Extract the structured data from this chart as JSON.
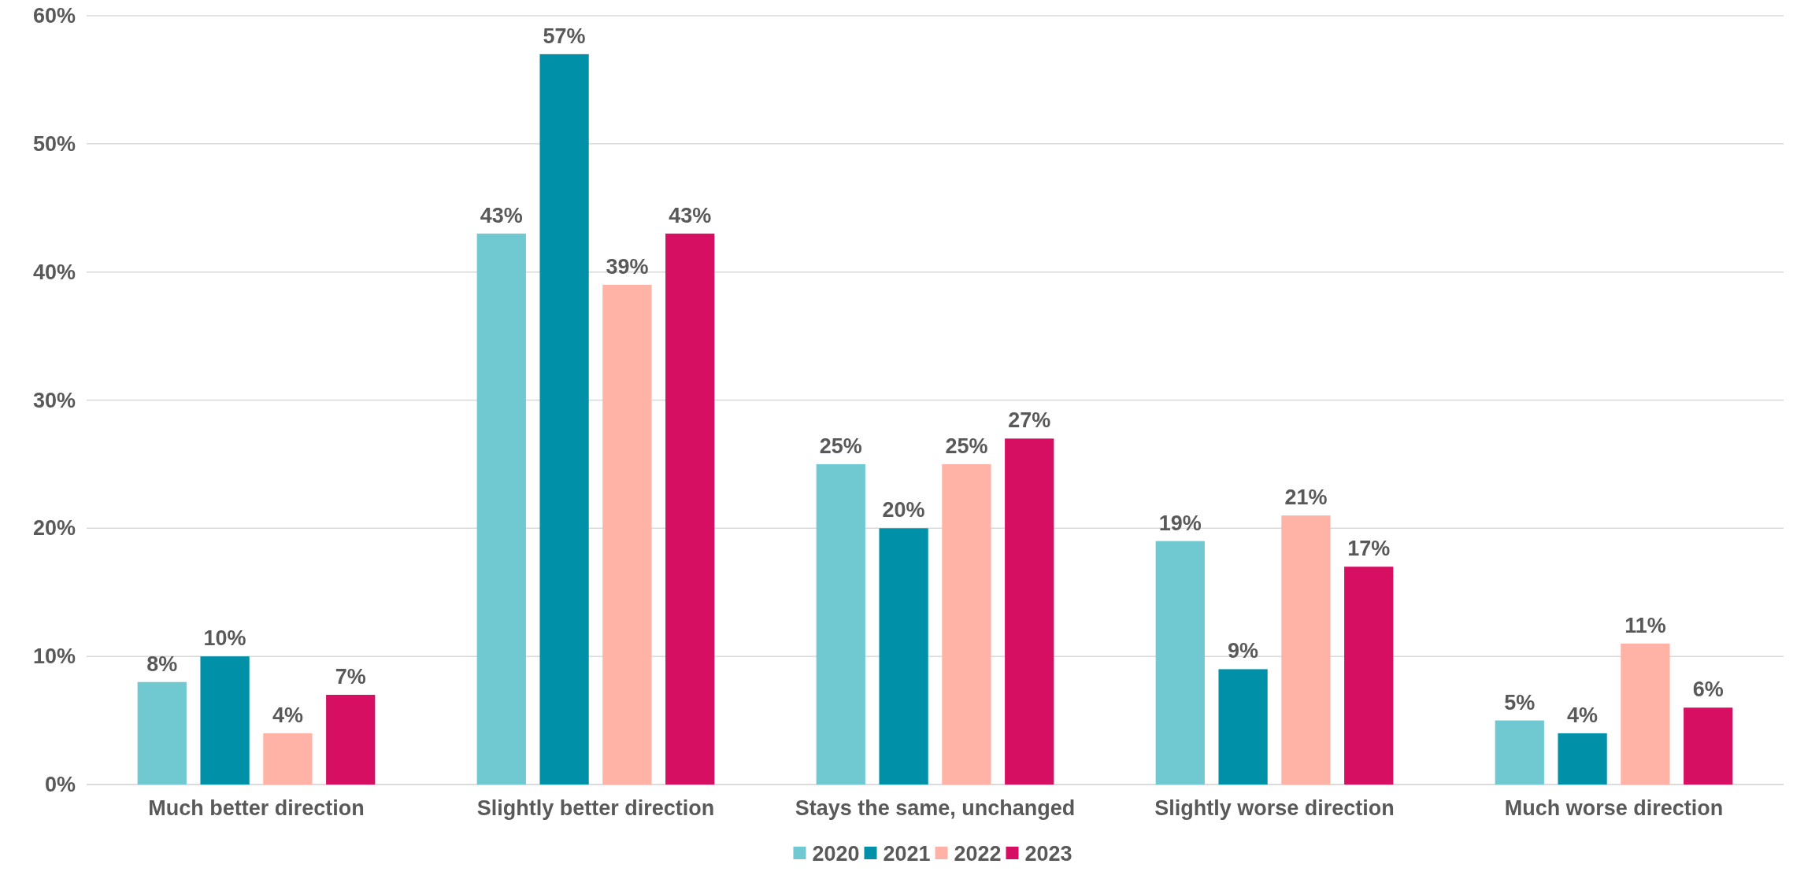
{
  "chart_data": {
    "type": "bar",
    "categories": [
      "Much better direction",
      "Slightly better direction",
      "Stays the same, unchanged",
      "Slightly worse direction",
      "Much worse direction"
    ],
    "series": [
      {
        "name": "2020",
        "color": "#70c8d1",
        "values": [
          8,
          43,
          25,
          19,
          5
        ],
        "value_labels": [
          "8%",
          "43%",
          "25%",
          "19%",
          "5%"
        ]
      },
      {
        "name": "2021",
        "color": "#0091a8",
        "values": [
          10,
          57,
          20,
          9,
          4
        ],
        "value_labels": [
          "10%",
          "57%",
          "20%",
          "9%",
          "4%"
        ]
      },
      {
        "name": "2022",
        "color": "#ffb3a7",
        "values": [
          4,
          39,
          25,
          21,
          11
        ],
        "value_labels": [
          "4%",
          "39%",
          "25%",
          "21%",
          "11%"
        ]
      },
      {
        "name": "2023",
        "color": "#d60f62",
        "values": [
          7,
          43,
          27,
          17,
          6
        ],
        "value_labels": [
          "7%",
          "43%",
          "27%",
          "17%",
          "6%"
        ]
      }
    ],
    "ylim": [
      0,
      60
    ],
    "yticks": [
      {
        "value": 0,
        "label": "0%"
      },
      {
        "value": 10,
        "label": "10%"
      },
      {
        "value": 20,
        "label": "20%"
      },
      {
        "value": 30,
        "label": "30%"
      },
      {
        "value": 40,
        "label": "40%"
      },
      {
        "value": 50,
        "label": "50%"
      },
      {
        "value": 60,
        "label": "60%"
      }
    ],
    "grid": "y",
    "legend": "bottom"
  }
}
